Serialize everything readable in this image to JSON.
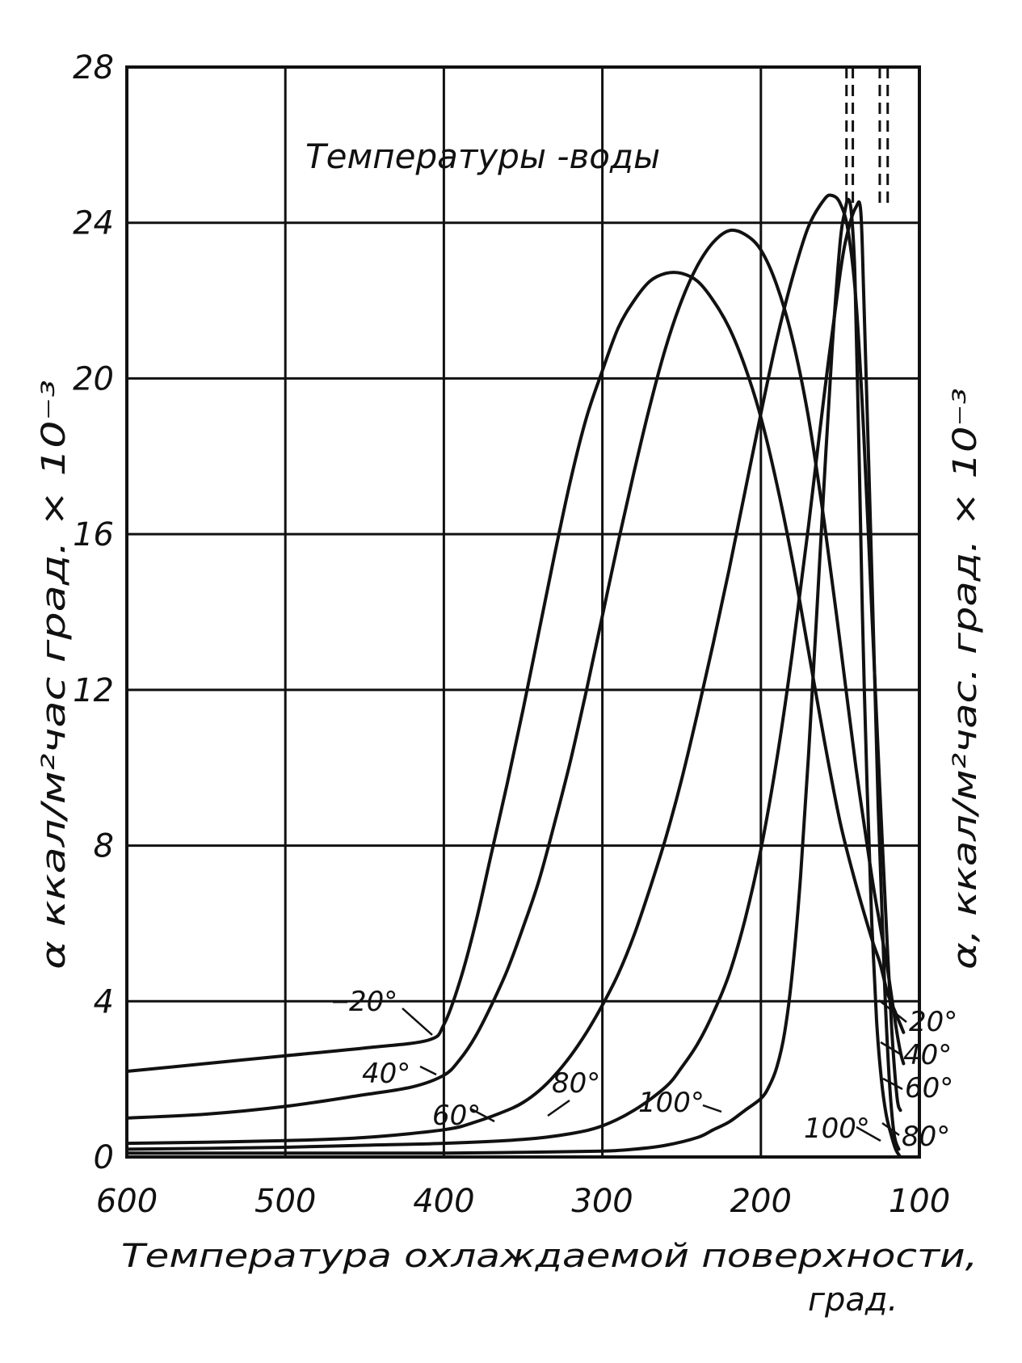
{
  "chart_data": {
    "type": "line",
    "title": "Температуры -воды",
    "xlabel_line1": "Температура охлаждаемой поверхности,",
    "xlabel_line2": "град.",
    "ylabel_left": "α  ккал/м²час град. × 10⁻³",
    "ylabel_right": "α, ккал/м²час. град. × 10⁻³",
    "x_reversed": true,
    "xlim": [
      600,
      100
    ],
    "ylim": [
      0,
      28
    ],
    "grid": true,
    "x_ticks": [
      600,
      500,
      400,
      300,
      200,
      100
    ],
    "x_tick_labels": [
      "600",
      "500",
      "400",
      "300",
      "200",
      "100"
    ],
    "y_ticks": [
      0,
      4,
      8,
      12,
      16,
      20,
      24,
      28
    ],
    "y_tick_labels": [
      "0",
      "4",
      "8",
      "12",
      "16",
      "20",
      "24",
      "28"
    ],
    "series": [
      {
        "name": "20°",
        "label_left": "20°",
        "label_right": "20°",
        "x": [
          600,
          550,
          500,
          450,
          410,
          400,
          390,
          380,
          370,
          360,
          350,
          340,
          330,
          320,
          310,
          300,
          290,
          280,
          270,
          260,
          250,
          240,
          230,
          220,
          210,
          200,
          190,
          180,
          170,
          160,
          150,
          140,
          130,
          125,
          120,
          115,
          112,
          110
        ],
        "y": [
          2.2,
          2.4,
          2.6,
          2.8,
          3.0,
          3.4,
          4.5,
          6.0,
          7.8,
          9.6,
          11.5,
          13.5,
          15.5,
          17.4,
          19.0,
          20.2,
          21.3,
          22.0,
          22.5,
          22.7,
          22.7,
          22.5,
          22.0,
          21.3,
          20.3,
          19.0,
          17.3,
          15.3,
          13.0,
          10.7,
          8.6,
          7.0,
          5.6,
          5.0,
          4.2,
          3.7,
          3.4,
          3.2
        ]
      },
      {
        "name": "40°",
        "label_left": "40°",
        "label_right": "40°",
        "x": [
          600,
          550,
          500,
          450,
          420,
          400,
          390,
          380,
          370,
          360,
          350,
          340,
          330,
          320,
          310,
          300,
          290,
          280,
          270,
          260,
          250,
          240,
          230,
          220,
          210,
          200,
          190,
          180,
          170,
          160,
          150,
          140,
          130,
          125,
          120,
          115,
          112,
          110
        ],
        "y": [
          1.0,
          1.1,
          1.3,
          1.6,
          1.8,
          2.1,
          2.5,
          3.1,
          3.9,
          4.8,
          5.9,
          7.1,
          8.6,
          10.2,
          12.0,
          13.9,
          15.8,
          17.6,
          19.3,
          20.8,
          22.0,
          22.9,
          23.5,
          23.8,
          23.7,
          23.3,
          22.4,
          21.0,
          19.0,
          16.3,
          13.2,
          10.0,
          7.2,
          6.0,
          4.8,
          3.4,
          2.7,
          2.4
        ]
      },
      {
        "name": "60°",
        "label_left": "60°",
        "label_right": "60°",
        "x": [
          600,
          550,
          500,
          450,
          400,
          380,
          360,
          350,
          340,
          330,
          320,
          310,
          300,
          290,
          280,
          270,
          260,
          250,
          240,
          230,
          220,
          210,
          200,
          190,
          180,
          170,
          160,
          155,
          150,
          145,
          140,
          135,
          130,
          125,
          120,
          117,
          114,
          112
        ],
        "y": [
          0.35,
          0.38,
          0.42,
          0.5,
          0.7,
          0.9,
          1.2,
          1.4,
          1.7,
          2.1,
          2.6,
          3.2,
          3.9,
          4.7,
          5.7,
          6.9,
          8.2,
          9.7,
          11.4,
          13.2,
          15.1,
          17.1,
          19.1,
          21.0,
          22.6,
          23.9,
          24.6,
          24.7,
          24.5,
          23.8,
          22.0,
          18.5,
          14.0,
          9.5,
          5.2,
          3.0,
          1.5,
          1.2
        ]
      },
      {
        "name": "80°",
        "label_left": "80°",
        "label_right": "80°",
        "x": [
          600,
          550,
          500,
          450,
          400,
          350,
          320,
          300,
          280,
          260,
          250,
          240,
          230,
          220,
          210,
          200,
          190,
          180,
          170,
          160,
          150,
          145,
          140,
          137,
          135,
          130,
          126,
          122,
          119,
          116,
          113
        ],
        "y": [
          0.2,
          0.22,
          0.25,
          0.3,
          0.35,
          0.45,
          0.6,
          0.8,
          1.2,
          1.8,
          2.3,
          2.9,
          3.7,
          4.7,
          6.1,
          7.9,
          10.2,
          13.0,
          16.2,
          19.6,
          22.7,
          23.8,
          24.4,
          24.3,
          22.0,
          15.0,
          9.0,
          4.5,
          2.0,
          0.6,
          0.2
        ]
      },
      {
        "name": "100°",
        "label_left": "100°",
        "label_right": "100°",
        "x": [
          600,
          500,
          400,
          350,
          300,
          280,
          260,
          240,
          230,
          220,
          210,
          200,
          195,
          190,
          185,
          180,
          175,
          170,
          165,
          160,
          155,
          150,
          147,
          145,
          143,
          141,
          140,
          138,
          136,
          133,
          130,
          127,
          124,
          121,
          118,
          115,
          112
        ],
        "y": [
          0.1,
          0.1,
          0.1,
          0.12,
          0.15,
          0.2,
          0.3,
          0.5,
          0.7,
          0.9,
          1.2,
          1.5,
          1.8,
          2.3,
          3.2,
          4.8,
          7.2,
          10.3,
          13.8,
          17.4,
          20.8,
          23.5,
          24.3,
          24.6,
          24.3,
          23.0,
          21.5,
          18.0,
          14.0,
          9.5,
          6.0,
          3.5,
          2.0,
          1.1,
          0.6,
          0.2,
          0.0
        ]
      }
    ],
    "dashed_lines_x": [
      146,
      142,
      125,
      120
    ]
  }
}
